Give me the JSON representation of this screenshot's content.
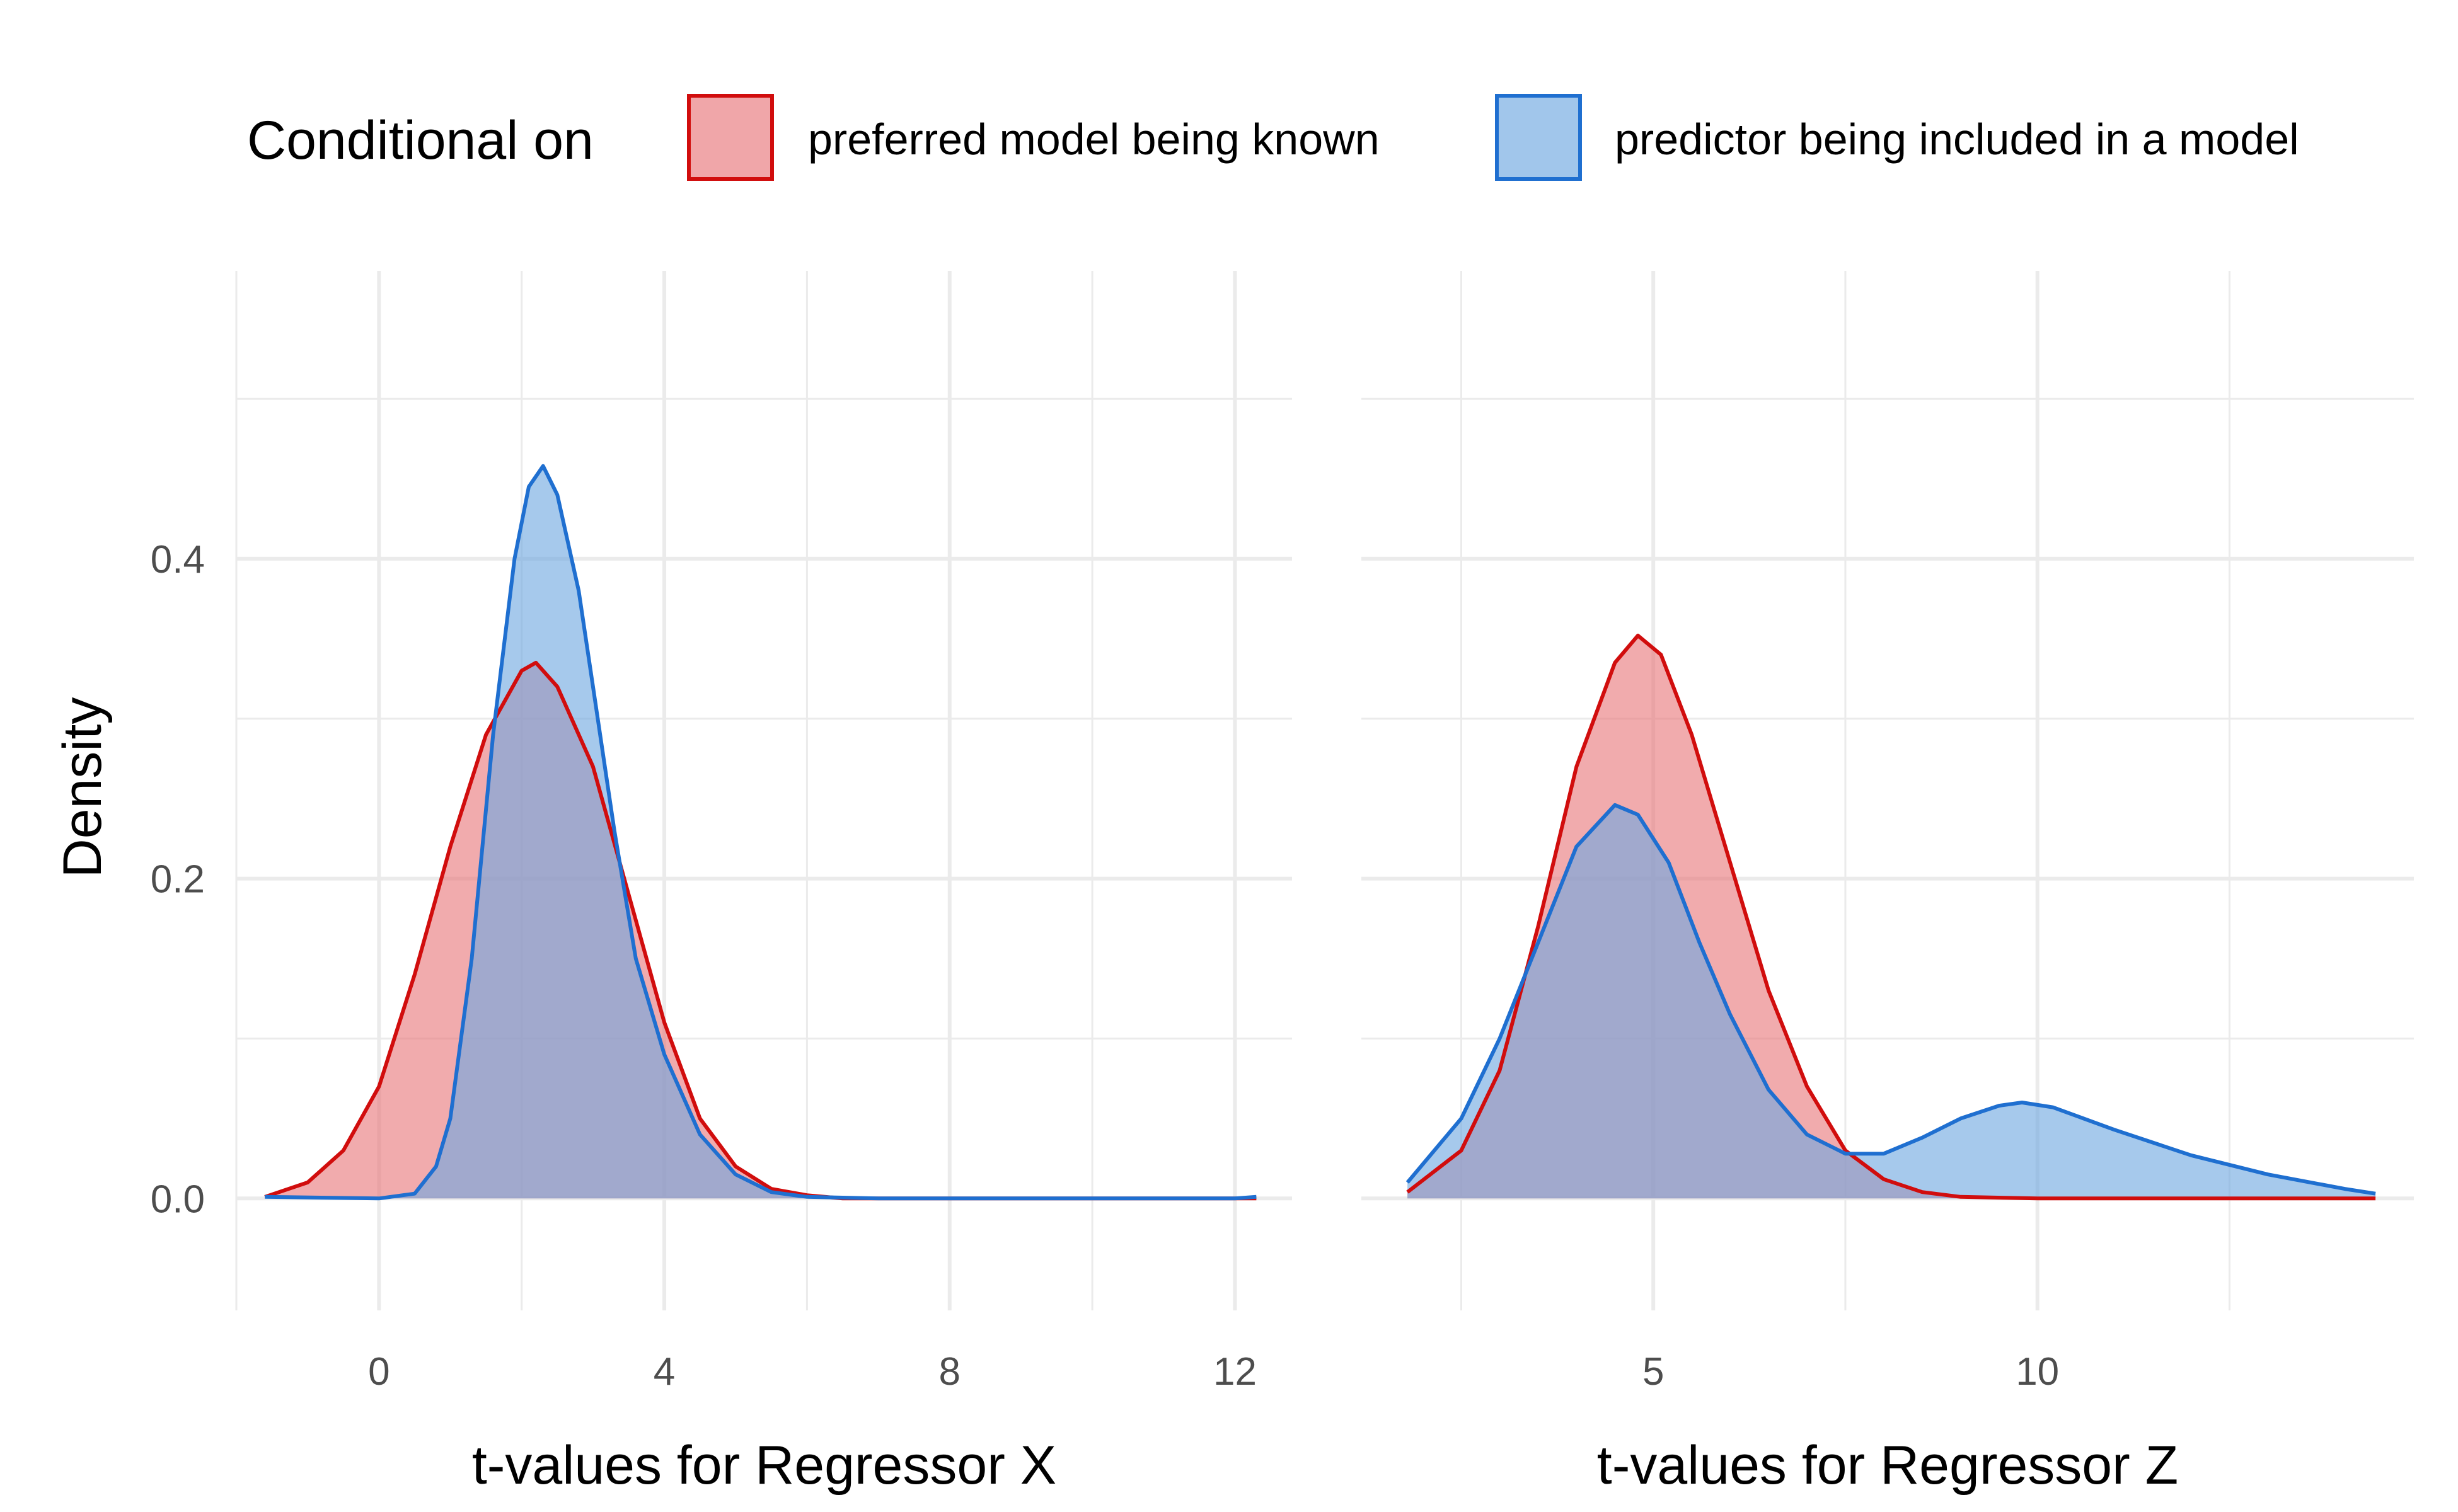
{
  "legend": {
    "title": "Conditional on",
    "items": [
      {
        "label": "preferred model being known",
        "fill": "#e8777b",
        "stroke": "#d10d0d"
      },
      {
        "label": "predictor being included in a model",
        "fill": "#6fa8e0",
        "stroke": "#1f6fd0"
      }
    ]
  },
  "y_axis": {
    "label": "Density",
    "ticks": [
      "0.0",
      "0.2",
      "0.4"
    ]
  },
  "colors": {
    "overlap": "#977fa6",
    "grid": "#ebebeb"
  },
  "chart_data": [
    {
      "type": "area",
      "panel": "left",
      "xlabel": "t-values for Regressor X",
      "ylabel": "Density",
      "xlim": [
        -2.0,
        12.8
      ],
      "ylim": [
        -0.07,
        0.58
      ],
      "x_ticks": [
        0,
        4,
        8,
        12
      ],
      "x_tick_labels": [
        "0",
        "4",
        "8",
        "12"
      ],
      "y_ticks": [
        0,
        0.2,
        0.4
      ],
      "y_tick_labels": [
        "0.0",
        "0.2",
        "0.4"
      ],
      "grid": true,
      "series": [
        {
          "name": "preferred model being known",
          "points": [
            [
              -1.6,
              0.001
            ],
            [
              -1.0,
              0.01
            ],
            [
              -0.5,
              0.03
            ],
            [
              0.0,
              0.07
            ],
            [
              0.5,
              0.14
            ],
            [
              1.0,
              0.22
            ],
            [
              1.5,
              0.29
            ],
            [
              2.0,
              0.33
            ],
            [
              2.2,
              0.335
            ],
            [
              2.5,
              0.32
            ],
            [
              3.0,
              0.27
            ],
            [
              3.5,
              0.19
            ],
            [
              4.0,
              0.11
            ],
            [
              4.5,
              0.05
            ],
            [
              5.0,
              0.02
            ],
            [
              5.5,
              0.006
            ],
            [
              6.0,
              0.002
            ],
            [
              6.5,
              0.0
            ],
            [
              8.0,
              0.0
            ],
            [
              10.0,
              0.0
            ],
            [
              12.3,
              0.0
            ]
          ]
        },
        {
          "name": "predictor being included in a model",
          "points": [
            [
              -1.6,
              0.001
            ],
            [
              0.0,
              0.0
            ],
            [
              0.5,
              0.003
            ],
            [
              0.8,
              0.02
            ],
            [
              1.0,
              0.05
            ],
            [
              1.3,
              0.15
            ],
            [
              1.6,
              0.29
            ],
            [
              1.9,
              0.4
            ],
            [
              2.1,
              0.445
            ],
            [
              2.3,
              0.458
            ],
            [
              2.5,
              0.44
            ],
            [
              2.8,
              0.38
            ],
            [
              3.0,
              0.32
            ],
            [
              3.3,
              0.23
            ],
            [
              3.6,
              0.15
            ],
            [
              4.0,
              0.09
            ],
            [
              4.5,
              0.04
            ],
            [
              5.0,
              0.015
            ],
            [
              5.5,
              0.004
            ],
            [
              6.0,
              0.001
            ],
            [
              7.0,
              0.0
            ],
            [
              10.0,
              0.0
            ],
            [
              12.0,
              0.0
            ],
            [
              12.3,
              0.001
            ]
          ]
        }
      ]
    },
    {
      "type": "area",
      "panel": "right",
      "xlabel": "t-values for Regressor Z",
      "xlim": [
        1.2,
        14.9
      ],
      "ylim": [
        -0.07,
        0.58
      ],
      "x_ticks": [
        5,
        10
      ],
      "x_tick_labels": [
        "5",
        "10"
      ],
      "y_ticks": [
        0,
        0.2,
        0.4
      ],
      "grid": true,
      "series": [
        {
          "name": "preferred model being known",
          "points": [
            [
              1.8,
              0.004
            ],
            [
              2.5,
              0.03
            ],
            [
              3.0,
              0.08
            ],
            [
              3.5,
              0.17
            ],
            [
              4.0,
              0.27
            ],
            [
              4.5,
              0.335
            ],
            [
              4.8,
              0.352
            ],
            [
              5.1,
              0.34
            ],
            [
              5.5,
              0.29
            ],
            [
              6.0,
              0.21
            ],
            [
              6.5,
              0.13
            ],
            [
              7.0,
              0.07
            ],
            [
              7.5,
              0.03
            ],
            [
              8.0,
              0.012
            ],
            [
              8.5,
              0.004
            ],
            [
              9.0,
              0.001
            ],
            [
              10.0,
              0.0
            ],
            [
              12.0,
              0.0
            ],
            [
              14.4,
              0.0
            ]
          ]
        },
        {
          "name": "predictor being included in a model",
          "points": [
            [
              1.8,
              0.01
            ],
            [
              2.5,
              0.05
            ],
            [
              3.0,
              0.1
            ],
            [
              3.5,
              0.16
            ],
            [
              4.0,
              0.22
            ],
            [
              4.5,
              0.246
            ],
            [
              4.8,
              0.24
            ],
            [
              5.2,
              0.21
            ],
            [
              5.6,
              0.16
            ],
            [
              6.0,
              0.115
            ],
            [
              6.5,
              0.068
            ],
            [
              7.0,
              0.04
            ],
            [
              7.5,
              0.028
            ],
            [
              8.0,
              0.028
            ],
            [
              8.5,
              0.038
            ],
            [
              9.0,
              0.05
            ],
            [
              9.5,
              0.058
            ],
            [
              9.8,
              0.06
            ],
            [
              10.2,
              0.057
            ],
            [
              11.0,
              0.043
            ],
            [
              12.0,
              0.027
            ],
            [
              13.0,
              0.015
            ],
            [
              14.0,
              0.006
            ],
            [
              14.4,
              0.003
            ]
          ]
        }
      ]
    }
  ]
}
